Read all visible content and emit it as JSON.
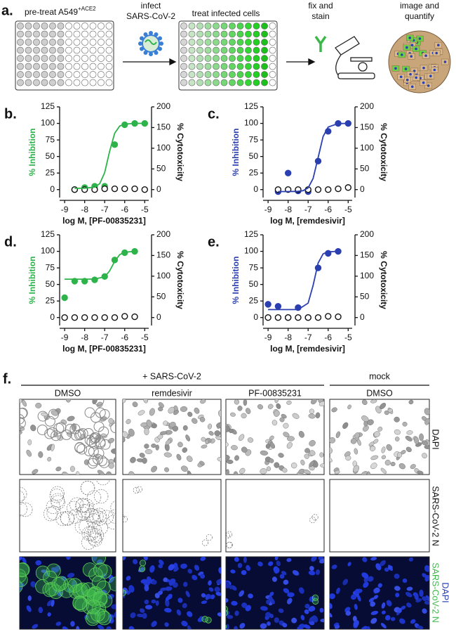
{
  "panel_a": {
    "label": "a.",
    "pretreat": "pre-treat A549",
    "pretreat_sup": "+ACE2",
    "infect": [
      "infect",
      "SARS-CoV-2"
    ],
    "treat": "treat infected cells",
    "fix": [
      "fix and",
      "stain"
    ],
    "image": [
      "image and",
      "quantify"
    ]
  },
  "chart_data": [
    {
      "type": "scatter",
      "panel": "b.",
      "xlabel": "log M, [PF-00835231]",
      "ylabel": "% Inhibition",
      "y2label": "% Cytotoxicity",
      "color": "#2db34a",
      "xlim": [
        -9.25,
        -4.8
      ],
      "xticks": [
        -9,
        -8,
        -7,
        -6,
        -5
      ],
      "ylim": [
        -12,
        125
      ],
      "yticks": [
        0,
        25,
        50,
        75,
        100,
        125
      ],
      "y2lim": [
        -19.2,
        200
      ],
      "y2ticks": [
        0,
        50,
        100,
        150,
        200
      ],
      "series": [
        {
          "marker": "filled",
          "color": "#2db34a",
          "x": [
            -8.5,
            -8,
            -7.5,
            -7,
            -6.5,
            -6,
            -5.5,
            -5
          ],
          "values": [
            0,
            3,
            5,
            5,
            68,
            98,
            100,
            100
          ]
        },
        {
          "marker": "open",
          "color": "#111111",
          "axis": "y2",
          "x": [
            -8.5,
            -8,
            -7.5,
            -7,
            -6.5,
            -6,
            -5.5,
            -5
          ],
          "values": [
            0,
            0,
            0,
            2,
            2,
            2,
            2,
            0
          ]
        },
        {
          "marker": "none",
          "color": "#2db34a",
          "x": [
            -8.5,
            -8,
            -7.5,
            -7.25,
            -7,
            -6.75,
            -6.5,
            -6.25,
            -6,
            -5.5,
            -5
          ],
          "values": [
            2,
            2.1,
            3.7,
            8.9,
            25.6,
            58,
            85.2,
            96,
            99,
            100,
            100
          ]
        }
      ]
    },
    {
      "type": "scatter",
      "panel": "c.",
      "xlabel": "log M, [remdesivir]",
      "ylabel": "% Inhibition",
      "y2label": "% Cytotoxicity",
      "color": "#2b3fb0",
      "xlim": [
        -9.25,
        -4.8
      ],
      "xticks": [
        -9,
        -8,
        -7,
        -6,
        -5
      ],
      "ylim": [
        -12,
        125
      ],
      "yticks": [
        0,
        25,
        50,
        75,
        100,
        125
      ],
      "y2lim": [
        -19.2,
        200
      ],
      "y2ticks": [
        0,
        50,
        100,
        150,
        200
      ],
      "series": [
        {
          "marker": "filled",
          "color": "#2b3fb0",
          "x": [
            -8.5,
            -8,
            -7.5,
            -7,
            -6.5,
            -6,
            -5.5,
            -5
          ],
          "values": [
            -3,
            25,
            -2,
            -3,
            43,
            88,
            100,
            100
          ]
        },
        {
          "marker": "open",
          "color": "#111111",
          "axis": "y2",
          "x": [
            -8.5,
            -8,
            -7.5,
            -7,
            -6.5,
            -6,
            -5.5,
            -5
          ],
          "values": [
            0,
            0,
            0,
            0,
            0,
            0,
            2,
            5
          ]
        },
        {
          "marker": "none",
          "color": "#2b3fb0",
          "x": [
            -8.5,
            -8,
            -7.5,
            -7.25,
            -7,
            -6.75,
            -6.5,
            -6.25,
            -6,
            -5.5,
            -5
          ],
          "values": [
            -3,
            -3,
            -2.7,
            -1.6,
            2.5,
            16.8,
            48.5,
            80.3,
            94.5,
            99.7,
            100
          ]
        }
      ]
    },
    {
      "type": "scatter",
      "panel": "d.",
      "xlabel": "log M, [PF-00835231]",
      "ylabel": "% Inhibition",
      "y2label": "% Cytotoxicity",
      "color": "#2db34a",
      "xlim": [
        -9.25,
        -4.8
      ],
      "xticks": [
        -9,
        -8,
        -7,
        -6,
        -5
      ],
      "ylim": [
        -12,
        125
      ],
      "yticks": [
        0,
        25,
        50,
        75,
        100,
        125
      ],
      "y2lim": [
        -19.2,
        200
      ],
      "y2ticks": [
        0,
        50,
        100,
        150,
        200
      ],
      "series": [
        {
          "marker": "filled",
          "color": "#2db34a",
          "x": [
            -9,
            -8.5,
            -8,
            -7.5,
            -7,
            -6.5,
            -6,
            -5.5
          ],
          "values": [
            30,
            55,
            55,
            57,
            62,
            87,
            98,
            100
          ]
        },
        {
          "marker": "open",
          "color": "#111111",
          "axis": "y2",
          "x": [
            -9,
            -8.5,
            -8,
            -7.5,
            -7,
            -6.5,
            -6,
            -5.5
          ],
          "values": [
            0,
            0,
            0,
            0,
            0,
            0,
            3,
            2
          ]
        },
        {
          "marker": "none",
          "color": "#2db34a",
          "x": [
            -9,
            -8,
            -7.5,
            -7,
            -6.75,
            -6.5,
            -6.25,
            -6,
            -5.5
          ],
          "values": [
            58,
            58,
            58.2,
            61.5,
            70.5,
            84.9,
            95,
            98.7,
            100
          ]
        }
      ]
    },
    {
      "type": "scatter",
      "panel": "e.",
      "xlabel": "log M, [remdesivir]",
      "ylabel": "% Inhibition",
      "y2label": "% Cytotoxicity",
      "color": "#2b3fb0",
      "xlim": [
        -9.25,
        -4.8
      ],
      "xticks": [
        -9,
        -8,
        -7,
        -6,
        -5
      ],
      "ylim": [
        -12,
        125
      ],
      "yticks": [
        0,
        25,
        50,
        75,
        100,
        125
      ],
      "y2lim": [
        -19.2,
        200
      ],
      "y2ticks": [
        0,
        50,
        100,
        150,
        200
      ],
      "series": [
        {
          "marker": "filled",
          "color": "#2b3fb0",
          "x": [
            -9,
            -8.5,
            -8,
            -7.5,
            -7,
            -6.5,
            -6,
            -5.5
          ],
          "values": [
            20,
            17,
            0,
            15,
            0,
            75,
            97,
            100
          ]
        },
        {
          "marker": "open",
          "color": "#111111",
          "axis": "y2",
          "x": [
            -9,
            -8.5,
            -8,
            -7.5,
            -7,
            -6.5,
            -6,
            -5.5
          ],
          "values": [
            0,
            0,
            0,
            0,
            0,
            0,
            3,
            2
          ]
        },
        {
          "marker": "none",
          "color": "#2b3fb0",
          "x": [
            -9,
            -8,
            -7.5,
            -7,
            -6.75,
            -6.5,
            -6.25,
            -6,
            -5.5
          ],
          "values": [
            12,
            12,
            12,
            21.8,
            48.5,
            82.4,
            96.2,
            99.3,
            100
          ]
        }
      ]
    }
  ],
  "panel_f": {
    "label": "f.",
    "group": "+ SARS-CoV-2",
    "mock": "mock",
    "columns": [
      "DMSO",
      "remdesivir",
      "PF-00835231",
      "DMSO"
    ],
    "rows": [
      "DAPI",
      "SARS-CoV-2 N"
    ],
    "merge": [
      "DAPI",
      "SARS-CoV-2 N"
    ]
  }
}
